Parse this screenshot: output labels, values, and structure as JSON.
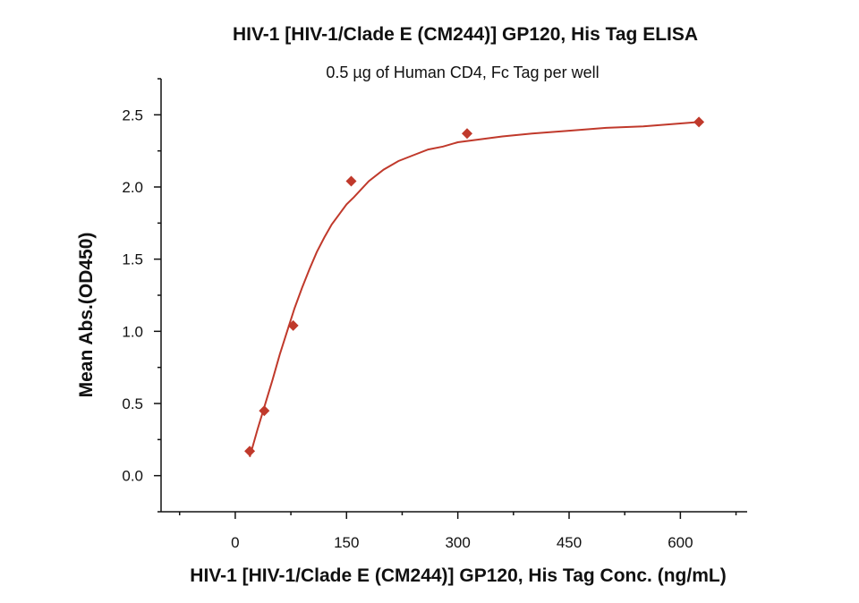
{
  "chart_data": {
    "type": "scatter",
    "title": "HIV-1 [HIV-1/Clade E (CM244)] GP120, His Tag ELISA",
    "subtitle": "0.5 µg of Human CD4, Fc Tag per well",
    "xlabel": "HIV-1 [HIV-1/Clade E (CM244)] GP120, His Tag Conc. (ng/mL)",
    "ylabel": "Mean Abs.(OD450)",
    "xlim": [
      -100,
      690
    ],
    "ylim": [
      -0.25,
      2.75
    ],
    "xticks": [
      0,
      150,
      300,
      450,
      600
    ],
    "xtick_labels": [
      "0",
      "150",
      "300",
      "450",
      "600"
    ],
    "yticks": [
      0.0,
      0.5,
      1.0,
      1.5,
      2.0,
      2.5
    ],
    "ytick_labels": [
      "0.0",
      "0.5",
      "1.0",
      "1.5",
      "2.0",
      "2.5"
    ],
    "grid": false,
    "series": [
      {
        "marker": "diamond",
        "color": "#c0392b",
        "x": [
          19.5,
          39.1,
          78.1,
          156.3,
          312.5,
          625
        ],
        "y": [
          0.17,
          0.45,
          1.04,
          2.04,
          2.37,
          2.45
        ]
      }
    ],
    "fit_curve": {
      "color": "#c0392b",
      "x": [
        19.5,
        30,
        40,
        50,
        60,
        70,
        80,
        90,
        100,
        110,
        120,
        130,
        140,
        150,
        160,
        180,
        200,
        220,
        240,
        260,
        280,
        300,
        330,
        360,
        400,
        450,
        500,
        550,
        600,
        625
      ],
      "y": [
        0.13,
        0.32,
        0.49,
        0.66,
        0.84,
        1.0,
        1.16,
        1.3,
        1.43,
        1.55,
        1.65,
        1.74,
        1.81,
        1.88,
        1.93,
        2.04,
        2.12,
        2.18,
        2.22,
        2.26,
        2.28,
        2.31,
        2.33,
        2.35,
        2.37,
        2.39,
        2.41,
        2.42,
        2.44,
        2.45
      ]
    }
  }
}
